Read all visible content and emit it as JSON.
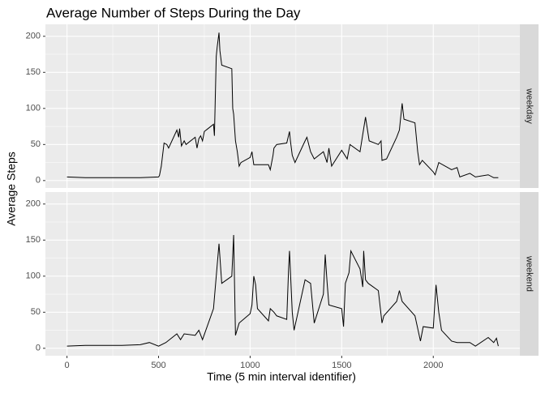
{
  "chart_data": {
    "type": "line",
    "title": "Average Number of Steps During the Day",
    "x_label": "Time (5 min interval identifier)",
    "y_label": "Average Steps",
    "facet": true,
    "grid": true,
    "xlim": [
      -117.75,
      2472.75
    ],
    "xticks": [
      0,
      500,
      1000,
      1500,
      2000
    ],
    "xminorticks": [
      250,
      750,
      1250,
      1750,
      2250
    ],
    "ylim": [
      -10.3,
      216.6
    ],
    "yticks": [
      0,
      50,
      100,
      150,
      200
    ],
    "yminorticks": [
      25,
      75,
      125,
      175
    ],
    "series": [
      {
        "name": "weekday",
        "color": "#000000",
        "x": [
          0,
          100,
          200,
          300,
          400,
          500,
          505,
          515,
          530,
          545,
          555,
          600,
          610,
          615,
          625,
          640,
          650,
          700,
          710,
          720,
          730,
          740,
          750,
          800,
          805,
          815,
          820,
          830,
          835,
          845,
          900,
          905,
          910,
          920,
          930,
          940,
          950,
          1000,
          1010,
          1020,
          1100,
          1110,
          1125,
          1130,
          1145,
          1200,
          1215,
          1220,
          1230,
          1245,
          1300,
          1310,
          1330,
          1350,
          1400,
          1420,
          1430,
          1445,
          1500,
          1530,
          1545,
          1600,
          1630,
          1650,
          1700,
          1715,
          1720,
          1745,
          1800,
          1815,
          1830,
          1840,
          1900,
          1915,
          1925,
          1940,
          2000,
          2010,
          2030,
          2100,
          2130,
          2145,
          2200,
          2230,
          2300,
          2330,
          2355
        ],
        "values": [
          5,
          4,
          4,
          4,
          4,
          5,
          7,
          20,
          52,
          50,
          45,
          70,
          60,
          72,
          48,
          55,
          50,
          60,
          45,
          58,
          62,
          55,
          68,
          78,
          62,
          172,
          185,
          205,
          180,
          160,
          155,
          100,
          92,
          55,
          40,
          20,
          25,
          32,
          40,
          22,
          22,
          15,
          35,
          45,
          50,
          52,
          68,
          55,
          35,
          25,
          55,
          60,
          40,
          30,
          40,
          25,
          45,
          20,
          42,
          30,
          50,
          40,
          88,
          55,
          50,
          55,
          28,
          30,
          60,
          70,
          107,
          85,
          80,
          40,
          22,
          28,
          12,
          8,
          25,
          15,
          18,
          5,
          10,
          5,
          8,
          4,
          4
        ]
      },
      {
        "name": "weekend",
        "color": "#000000",
        "x": [
          0,
          100,
          200,
          300,
          400,
          450,
          500,
          540,
          600,
          620,
          640,
          700,
          720,
          740,
          800,
          815,
          830,
          845,
          900,
          910,
          920,
          940,
          1000,
          1010,
          1020,
          1030,
          1040,
          1100,
          1110,
          1130,
          1145,
          1200,
          1210,
          1215,
          1230,
          1240,
          1300,
          1330,
          1350,
          1400,
          1410,
          1420,
          1430,
          1500,
          1510,
          1520,
          1540,
          1550,
          1600,
          1615,
          1620,
          1630,
          1645,
          1700,
          1720,
          1730,
          1800,
          1815,
          1830,
          1900,
          1930,
          1945,
          2000,
          2015,
          2030,
          2045,
          2100,
          2130,
          2200,
          2230,
          2300,
          2330,
          2345,
          2355
        ],
        "values": [
          3,
          4,
          4,
          4,
          5,
          8,
          3,
          8,
          20,
          12,
          20,
          18,
          25,
          12,
          55,
          100,
          145,
          90,
          100,
          157,
          18,
          35,
          48,
          60,
          100,
          88,
          55,
          38,
          55,
          50,
          45,
          40,
          110,
          135,
          50,
          25,
          95,
          90,
          35,
          75,
          130,
          92,
          60,
          55,
          30,
          90,
          105,
          135,
          110,
          85,
          135,
          95,
          90,
          80,
          35,
          45,
          65,
          80,
          65,
          45,
          10,
          30,
          28,
          88,
          50,
          25,
          10,
          8,
          8,
          3,
          15,
          8,
          14,
          3
        ]
      }
    ]
  }
}
